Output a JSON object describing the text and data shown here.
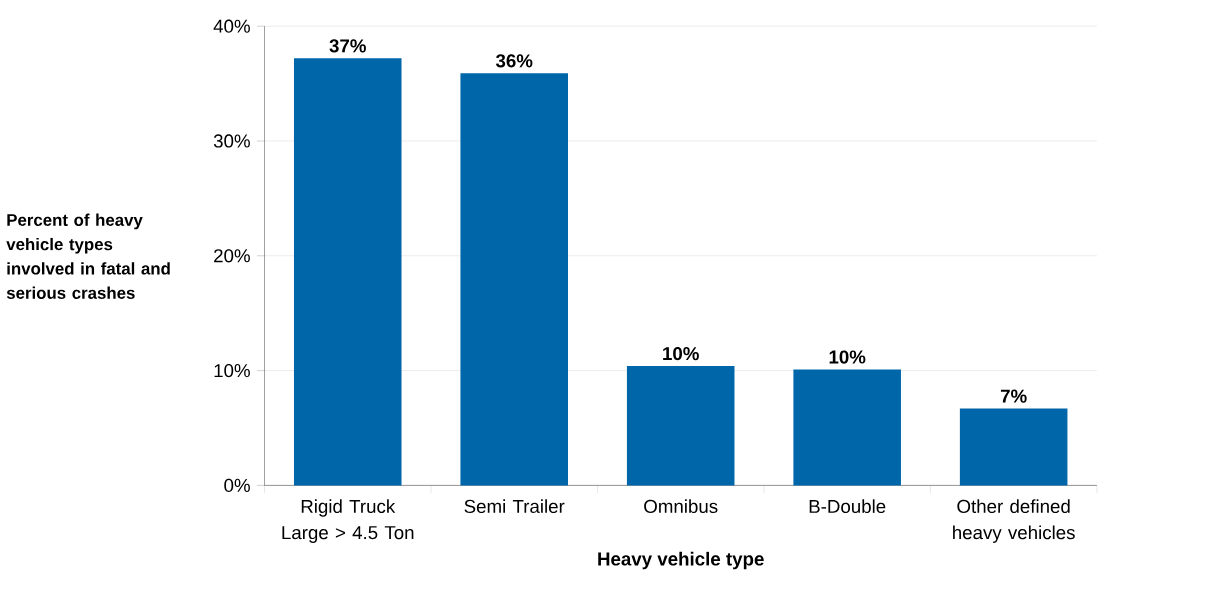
{
  "chart_data": {
    "type": "bar",
    "ylabel": "Percent of heavy vehicle types involved in fatal and serious crashes",
    "xlabel": "Heavy vehicle type",
    "categories": [
      "Rigid Truck Large > 4.5 Ton",
      "Semi Trailer",
      "Omnibus",
      "B-Double",
      "Other defined heavy vehicles"
    ],
    "values": [
      37.2,
      35.9,
      10.4,
      10.1,
      6.7
    ],
    "value_labels": [
      "37%",
      "36%",
      "10%",
      "10%",
      "7%"
    ],
    "color": "#0066aa",
    "ylim": [
      0,
      40
    ],
    "yticks": [
      {
        "value": 0,
        "label": "0%"
      },
      {
        "value": 10,
        "label": "10%"
      },
      {
        "value": 20,
        "label": "20%"
      },
      {
        "value": 30,
        "label": "30%"
      },
      {
        "value": 40,
        "label": "40%"
      }
    ],
    "grid": "y"
  }
}
